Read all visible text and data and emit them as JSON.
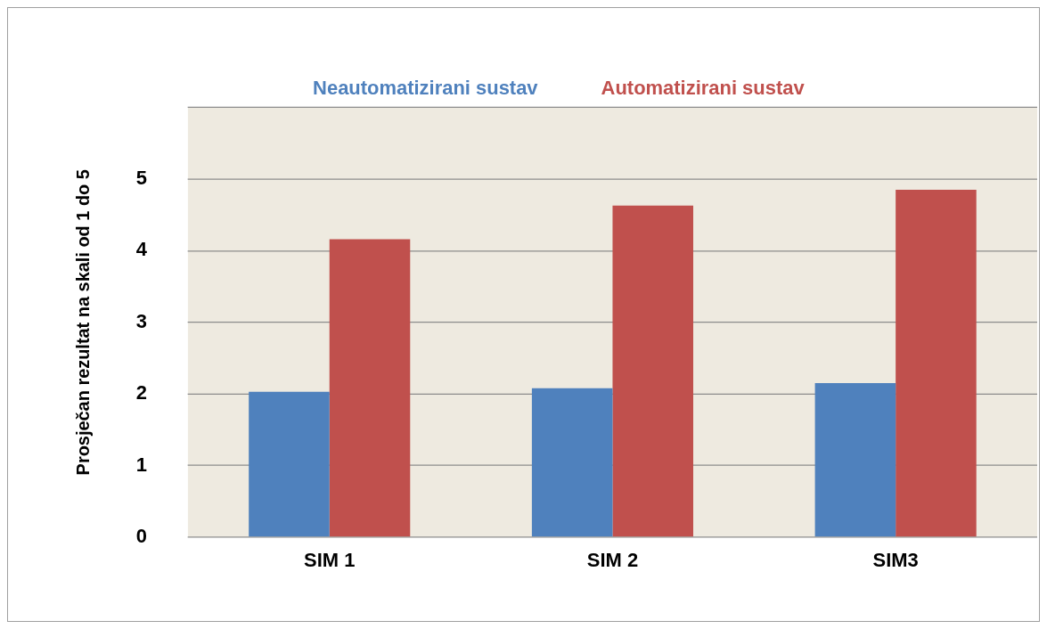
{
  "chart_data": {
    "type": "bar",
    "ylabel": "Prosječan rezultat na skali od 1 do 5",
    "categories": [
      "SIM 1",
      "SIM 2",
      "SIM3"
    ],
    "series": [
      {
        "name": "Neautomatizirani sustav",
        "color": "#4f81bd",
        "values": [
          2.03,
          2.08,
          2.15
        ]
      },
      {
        "name": "Automatizirani sustav",
        "color": "#c0504d",
        "values": [
          4.16,
          4.63,
          4.85
        ]
      }
    ],
    "ylim": [
      0,
      6
    ],
    "yticks": [
      0,
      1,
      2,
      3,
      4,
      5,
      {
        "value": 6,
        "label": null
      }
    ],
    "grid": "y",
    "legend": "top"
  }
}
